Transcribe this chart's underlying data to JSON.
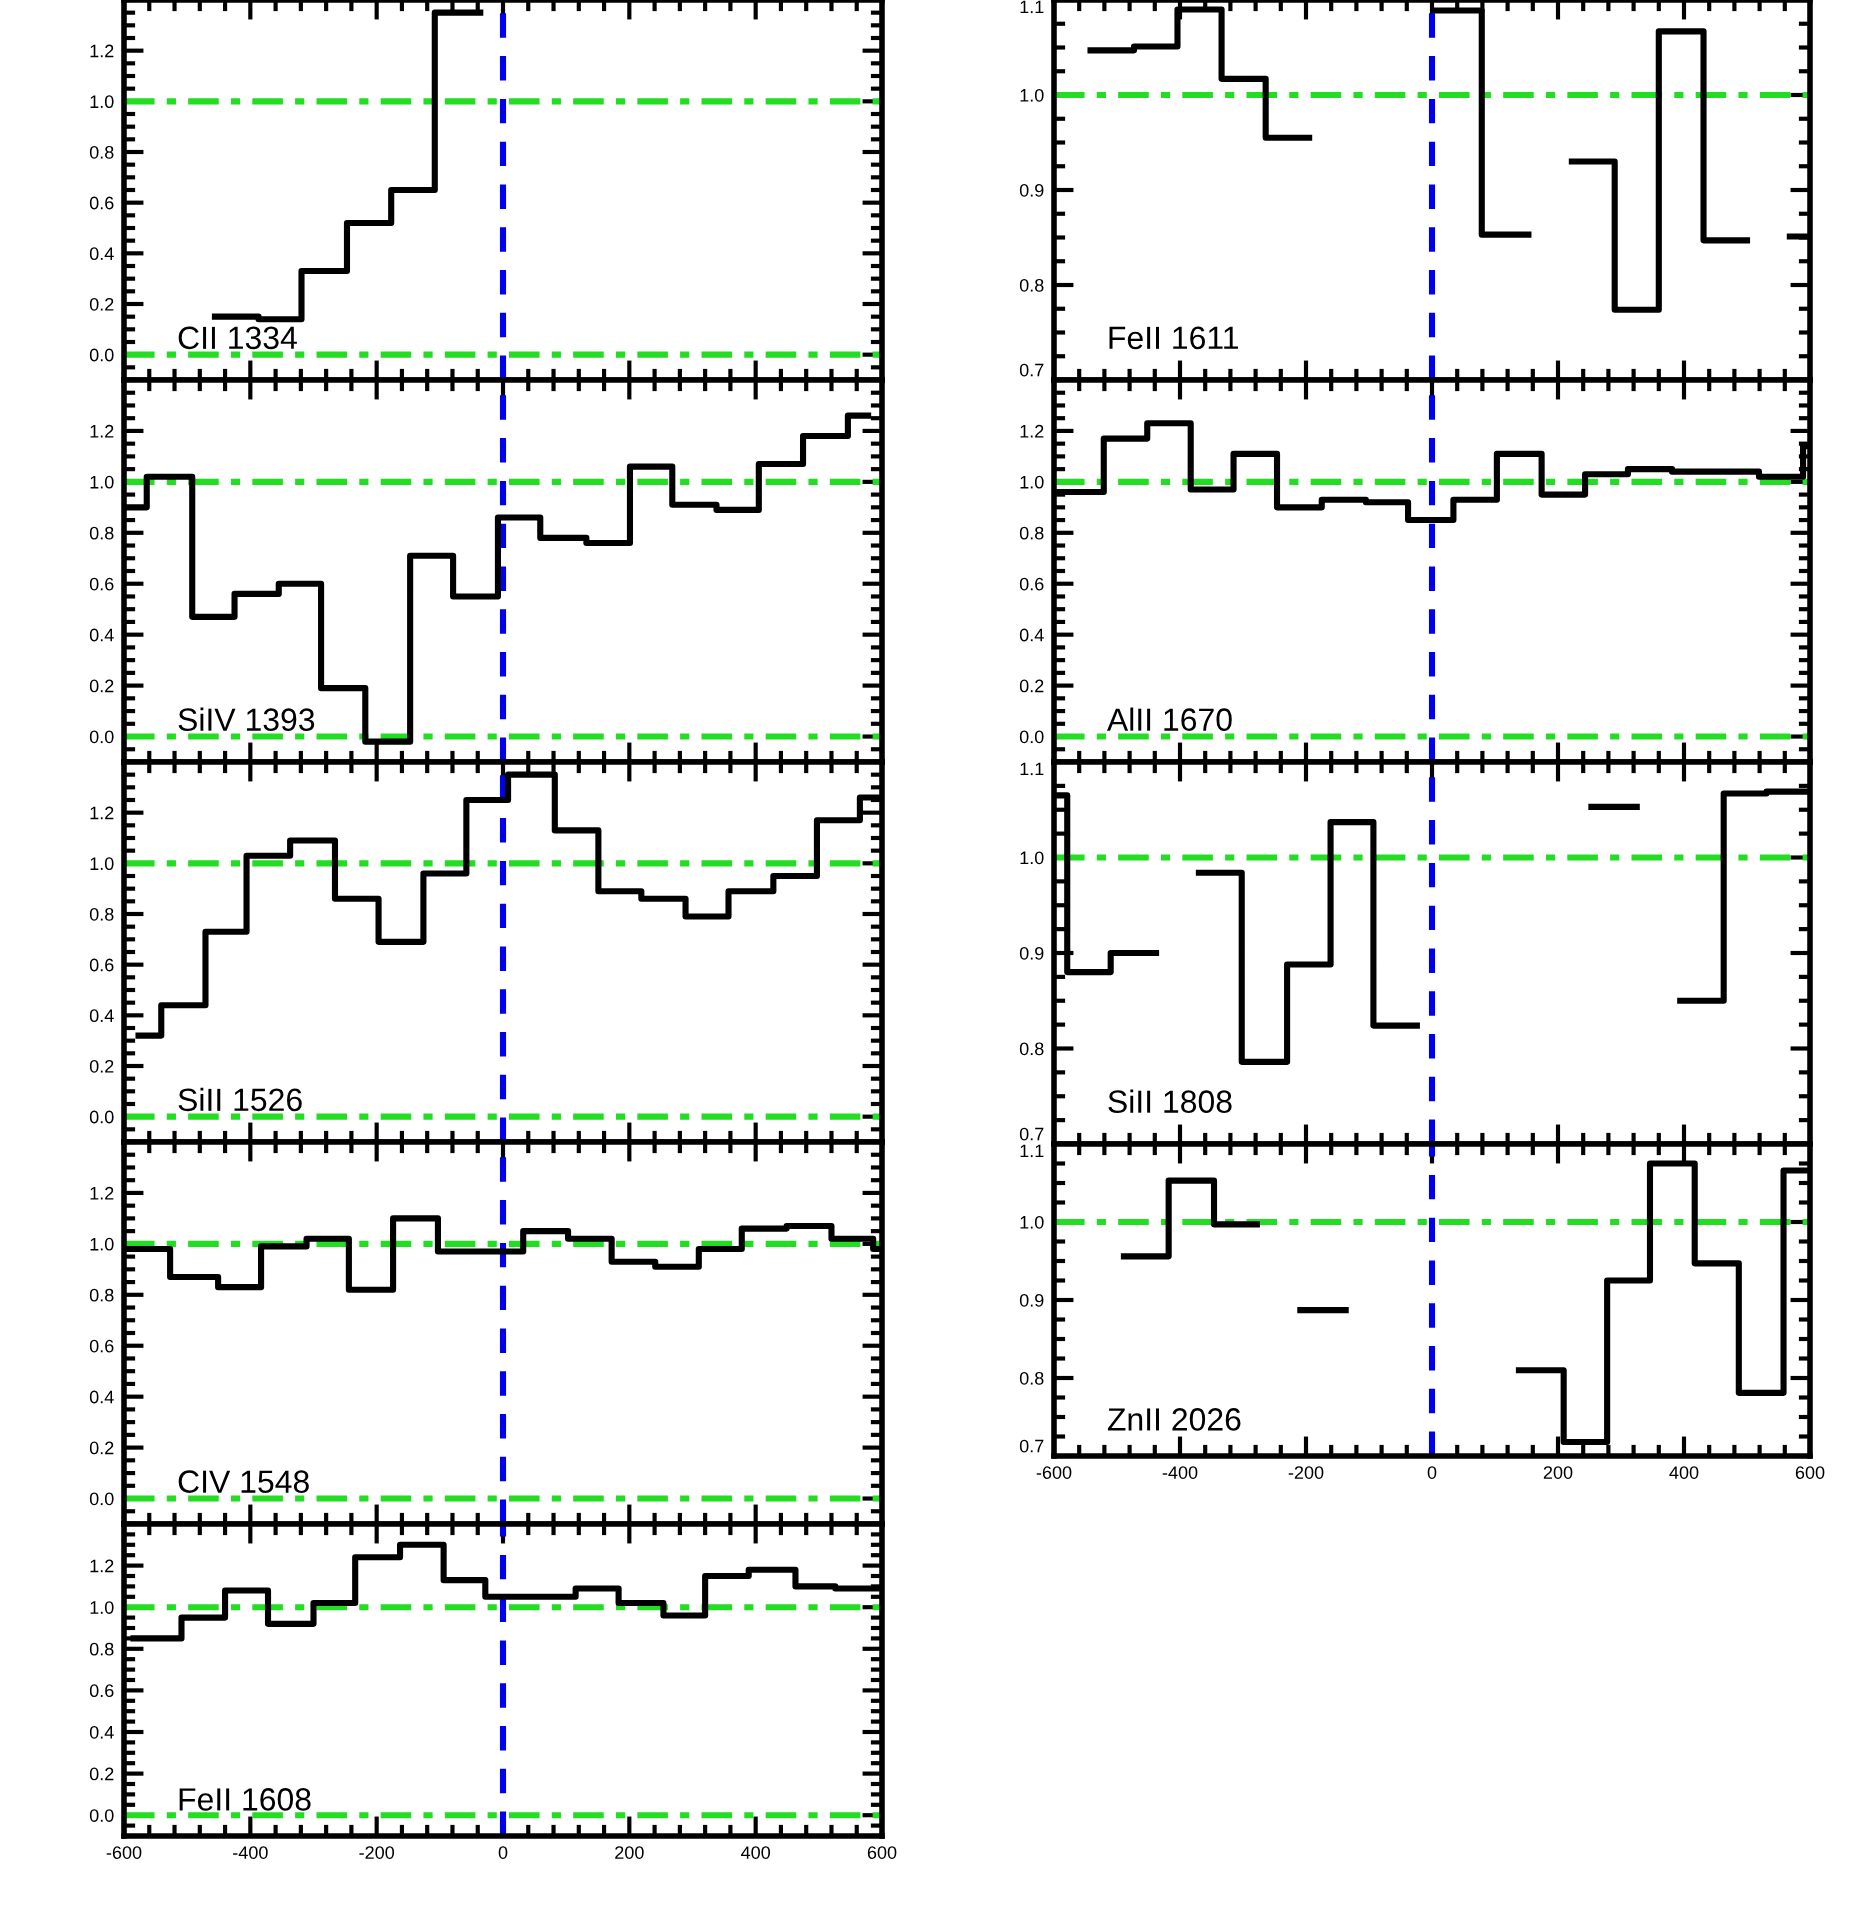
{
  "chart_data": [
    {
      "type": "step",
      "annotations": [
        "CII 1334"
      ],
      "xlim": [
        -600,
        600
      ],
      "xticks": [
        -600,
        -400,
        -200,
        0,
        200,
        400,
        600
      ],
      "ylim": [
        -0.1,
        1.4
      ],
      "yticks": [
        {
          "value": 0,
          "label": "0.0"
        },
        {
          "value": 0.2,
          "label": "0.2"
        },
        {
          "value": 0.4,
          "label": "0.4"
        },
        {
          "value": 0.6,
          "label": "0.6"
        },
        {
          "value": 0.8,
          "label": "0.8"
        },
        {
          "value": 1.0,
          "label": "1.0"
        },
        {
          "value": 1.2,
          "label": "1.2"
        }
      ],
      "tick_labels": "y",
      "ref_lines": [
        {
          "axis": "y",
          "value": 0,
          "color": "#22dd22",
          "line_style": "dashdot"
        },
        {
          "axis": "y",
          "value": 1,
          "color": "#22dd22",
          "line_style": "dashdot"
        },
        {
          "axis": "x",
          "value": 0,
          "color": "#0000ee",
          "line_style": "dashed"
        }
      ],
      "series": [
        {
          "color": "#000000",
          "x": [
            -456,
            -387,
            -319,
            -247,
            -177,
            -108,
            -36
          ],
          "values": [
            0.15,
            0.14,
            0.33,
            0.52,
            0.65,
            1.35,
            1.35
          ]
        }
      ]
    },
    {
      "type": "step",
      "annotations": [
        "SiIV 1393"
      ],
      "xlim": [
        -600,
        600
      ],
      "xticks": [
        -600,
        -400,
        -200,
        0,
        200,
        400,
        600
      ],
      "ylim": [
        -0.1,
        1.4
      ],
      "yticks": [
        {
          "value": 0,
          "label": "0.0"
        },
        {
          "value": 0.2,
          "label": "0.2"
        },
        {
          "value": 0.4,
          "label": "0.4"
        },
        {
          "value": 0.6,
          "label": "0.6"
        },
        {
          "value": 0.8,
          "label": "0.8"
        },
        {
          "value": 1.0,
          "label": "1.0"
        },
        {
          "value": 1.2,
          "label": "1.2"
        }
      ],
      "tick_labels": "y",
      "ref_lines": [
        {
          "axis": "y",
          "value": 0,
          "color": "#22dd22",
          "line_style": "dashdot"
        },
        {
          "axis": "y",
          "value": 1,
          "color": "#22dd22",
          "line_style": "dashdot"
        },
        {
          "axis": "x",
          "value": 0,
          "color": "#0000ee",
          "line_style": "dashed"
        }
      ],
      "series": [
        {
          "color": "#000000",
          "x": [
            -600,
            -564,
            -492,
            -425,
            -355,
            -288,
            -218,
            -147,
            -79,
            -8,
            59,
            132,
            201,
            268,
            338,
            405,
            475,
            546,
            578
          ],
          "values": [
            0.9,
            1.02,
            0.47,
            0.56,
            0.6,
            0.19,
            -0.02,
            0.71,
            0.55,
            0.86,
            0.78,
            0.76,
            1.06,
            0.91,
            0.89,
            1.07,
            1.18,
            1.26,
            1.26
          ]
        }
      ]
    },
    {
      "type": "step",
      "annotations": [
        "SiII 1526"
      ],
      "xlim": [
        -600,
        600
      ],
      "xticks": [
        -600,
        -400,
        -200,
        0,
        200,
        400,
        600
      ],
      "ylim": [
        -0.1,
        1.4
      ],
      "yticks": [
        {
          "value": 0,
          "label": "0.0"
        },
        {
          "value": 0.2,
          "label": "0.2"
        },
        {
          "value": 0.4,
          "label": "0.4"
        },
        {
          "value": 0.6,
          "label": "0.6"
        },
        {
          "value": 0.8,
          "label": "0.8"
        },
        {
          "value": 1.0,
          "label": "1.0"
        },
        {
          "value": 1.2,
          "label": "1.2"
        }
      ],
      "tick_labels": "y",
      "ref_lines": [
        {
          "axis": "y",
          "value": 0,
          "color": "#22dd22",
          "line_style": "dashdot"
        },
        {
          "axis": "y",
          "value": 1,
          "color": "#22dd22",
          "line_style": "dashdot"
        },
        {
          "axis": "x",
          "value": 0,
          "color": "#0000ee",
          "line_style": "dashed"
        }
      ],
      "series": [
        {
          "color": "#000000",
          "x": [
            -577,
            -541,
            -471,
            -406,
            -337,
            -266,
            -197,
            -126,
            -58,
            8,
            82,
            151,
            219,
            289,
            357,
            428,
            497,
            565,
            595
          ],
          "values": [
            0.32,
            0.44,
            0.73,
            1.03,
            1.09,
            0.86,
            0.69,
            0.96,
            1.25,
            1.35,
            1.13,
            0.89,
            0.86,
            0.79,
            0.89,
            0.95,
            1.17,
            1.26,
            1.26
          ]
        }
      ]
    },
    {
      "type": "step",
      "annotations": [
        "CIV 1548"
      ],
      "xlim": [
        -600,
        600
      ],
      "xticks": [
        -600,
        -400,
        -200,
        0,
        200,
        400,
        600
      ],
      "ylim": [
        -0.1,
        1.4
      ],
      "yticks": [
        {
          "value": 0,
          "label": "0.0"
        },
        {
          "value": 0.2,
          "label": "0.2"
        },
        {
          "value": 0.4,
          "label": "0.4"
        },
        {
          "value": 0.6,
          "label": "0.6"
        },
        {
          "value": 0.8,
          "label": "0.8"
        },
        {
          "value": 1.0,
          "label": "1.0"
        },
        {
          "value": 1.2,
          "label": "1.2"
        }
      ],
      "tick_labels": "y",
      "ref_lines": [
        {
          "axis": "y",
          "value": 0,
          "color": "#22dd22",
          "line_style": "dashdot"
        },
        {
          "axis": "y",
          "value": 1,
          "color": "#22dd22",
          "line_style": "dashdot"
        },
        {
          "axis": "x",
          "value": 0,
          "color": "#0000ee",
          "line_style": "dashed"
        }
      ],
      "series": [
        {
          "color": "#000000",
          "x": [
            -596,
            -527,
            -451,
            -383,
            -311,
            -244,
            -174,
            -103,
            -33,
            32,
            103,
            172,
            241,
            310,
            378,
            449,
            520,
            586,
            595
          ],
          "values": [
            0.98,
            0.87,
            0.83,
            0.99,
            1.02,
            0.82,
            1.1,
            0.97,
            0.97,
            1.05,
            1.02,
            0.93,
            0.91,
            0.98,
            1.06,
            1.07,
            1.02,
            0.98,
            0.98
          ]
        }
      ]
    },
    {
      "type": "step",
      "annotations": [
        "FeII 1608"
      ],
      "xlim": [
        -600,
        600
      ],
      "xticks": [
        -600,
        -400,
        -200,
        0,
        200,
        400,
        600
      ],
      "ylim": [
        -0.1,
        1.4
      ],
      "yticks": [
        {
          "value": 0,
          "label": "0.0"
        },
        {
          "value": 0.2,
          "label": "0.2"
        },
        {
          "value": 0.4,
          "label": "0.4"
        },
        {
          "value": 0.6,
          "label": "0.6"
        },
        {
          "value": 0.8,
          "label": "0.8"
        },
        {
          "value": 1.0,
          "label": "1.0"
        },
        {
          "value": 1.2,
          "label": "1.2"
        }
      ],
      "ref_lines": [
        {
          "axis": "y",
          "value": 0,
          "color": "#22dd22",
          "line_style": "dashdot"
        },
        {
          "axis": "y",
          "value": 1,
          "color": "#22dd22",
          "line_style": "dashdot"
        },
        {
          "axis": "x",
          "value": 0,
          "color": "#0000ee",
          "line_style": "dashed"
        }
      ],
      "series": [
        {
          "color": "#000000",
          "x": [
            -585,
            -509,
            -440,
            -372,
            -300,
            -234,
            -163,
            -94,
            -28,
            46,
            115,
            183,
            254,
            320,
            389,
            463,
            526,
            595
          ],
          "values": [
            0.85,
            0.95,
            1.08,
            0.92,
            1.02,
            1.24,
            1.3,
            1.13,
            1.05,
            1.05,
            1.09,
            1.02,
            0.96,
            1.15,
            1.18,
            1.1,
            1.09,
            1.09
          ]
        }
      ]
    },
    {
      "type": "step",
      "annotations": [
        "FeII 1611"
      ],
      "xlim": [
        -600,
        600
      ],
      "xticks": [
        -600,
        -400,
        -200,
        0,
        200,
        400,
        600
      ],
      "ylim": [
        0.7,
        1.1
      ],
      "yticks": [
        {
          "value": 0.7,
          "label": "0.7"
        },
        {
          "value": 0.8,
          "label": "0.8"
        },
        {
          "value": 0.9,
          "label": "0.9"
        },
        {
          "value": 1.0,
          "label": "1.0"
        },
        {
          "value": 1.1,
          "label": "1.1"
        }
      ],
      "tick_labels": "y",
      "ref_lines": [
        {
          "axis": "y",
          "value": 1,
          "color": "#22dd22",
          "line_style": "dashdot"
        },
        {
          "axis": "x",
          "value": 0,
          "color": "#0000ee",
          "line_style": "dashed"
        }
      ],
      "series": [
        {
          "color": "#000000",
          "x": [
            -542,
            -473,
            -404,
            -334,
            -264,
            -195,
            8,
            79,
            153,
            222,
            290,
            360,
            431,
            500,
            568,
            597
          ],
          "values": [
            1.047,
            1.051,
            1.09,
            1.017,
            0.955,
            null,
            1.089,
            0.853,
            null,
            0.93,
            0.774,
            1.067,
            0.847,
            null,
            0.851,
            0.851
          ]
        }
      ]
    },
    {
      "type": "step",
      "annotations": [
        "AlII 1670"
      ],
      "xlim": [
        -600,
        600
      ],
      "xticks": [
        -600,
        -400,
        -200,
        0,
        200,
        400,
        600
      ],
      "ylim": [
        -0.1,
        1.4
      ],
      "yticks": [
        {
          "value": 0,
          "label": "0.0"
        },
        {
          "value": 0.2,
          "label": "0.2"
        },
        {
          "value": 0.4,
          "label": "0.4"
        },
        {
          "value": 0.6,
          "label": "0.6"
        },
        {
          "value": 0.8,
          "label": "0.8"
        },
        {
          "value": 1.0,
          "label": "1.0"
        },
        {
          "value": 1.2,
          "label": "1.2"
        }
      ],
      "tick_labels": "y",
      "ref_lines": [
        {
          "axis": "y",
          "value": 0,
          "color": "#22dd22",
          "line_style": "dashdot"
        },
        {
          "axis": "y",
          "value": 1,
          "color": "#22dd22",
          "line_style": "dashdot"
        },
        {
          "axis": "x",
          "value": 0,
          "color": "#0000ee",
          "line_style": "dashed"
        }
      ],
      "series": [
        {
          "color": "#000000",
          "x": [
            -592,
            -521,
            -452,
            -383,
            -315,
            -246,
            -175,
            -105,
            -38,
            34,
            103,
            174,
            243,
            311,
            381,
            450,
            519,
            589,
            600
          ],
          "values": [
            0.96,
            1.17,
            1.23,
            0.97,
            1.11,
            0.9,
            0.93,
            0.92,
            0.85,
            0.93,
            1.11,
            0.95,
            1.03,
            1.05,
            1.04,
            1.04,
            1.02,
            1.14,
            1.14
          ]
        }
      ]
    },
    {
      "type": "step",
      "annotations": [
        "SiII 1808"
      ],
      "xlim": [
        -600,
        600
      ],
      "xticks": [
        -600,
        -400,
        -200,
        0,
        200,
        400,
        600
      ],
      "ylim": [
        0.7,
        1.1
      ],
      "yticks": [
        {
          "value": 0.7,
          "label": "0.7"
        },
        {
          "value": 0.8,
          "label": "0.8"
        },
        {
          "value": 0.9,
          "label": "0.9"
        },
        {
          "value": 1.0,
          "label": "1.0"
        },
        {
          "value": 1.1,
          "label": "1.1"
        }
      ],
      "tick_labels": "y",
      "ref_lines": [
        {
          "axis": "y",
          "value": 1,
          "color": "#22dd22",
          "line_style": "dashdot"
        },
        {
          "axis": "x",
          "value": 0,
          "color": "#0000ee",
          "line_style": "dashed"
        }
      ],
      "series": [
        {
          "color": "#000000",
          "x": [
            -595,
            -579,
            -510,
            -438,
            -370,
            -302,
            -230,
            -161,
            -93,
            -24,
            45,
            185,
            253,
            325,
            394,
            463,
            531,
            597
          ],
          "values": [
            1.065,
            0.88,
            0.9,
            null,
            0.984,
            0.786,
            0.888,
            1.037,
            0.824,
            null,
            null,
            null,
            1.053,
            null,
            0.85,
            1.067,
            1.069,
            1.069
          ]
        }
      ]
    },
    {
      "type": "step",
      "annotations": [
        "ZnII 2026"
      ],
      "xlim": [
        -600,
        600
      ],
      "xticks": [
        -600,
        -400,
        -200,
        0,
        200,
        400,
        600
      ],
      "ylim": [
        0.7,
        1.1
      ],
      "yticks": [
        {
          "value": 0.7,
          "label": "0.7"
        },
        {
          "value": 0.8,
          "label": "0.8"
        },
        {
          "value": 0.9,
          "label": "0.9"
        },
        {
          "value": 1.0,
          "label": "1.0"
        },
        {
          "value": 1.1,
          "label": "1.1"
        }
      ],
      "ref_lines": [
        {
          "axis": "y",
          "value": 1,
          "color": "#22dd22",
          "line_style": "dashdot"
        },
        {
          "axis": "x",
          "value": 0,
          "color": "#0000ee",
          "line_style": "dashed"
        }
      ],
      "series": [
        {
          "color": "#000000",
          "x": [
            -489,
            -418,
            -346,
            -278,
            -209,
            -137,
            138,
            209,
            278,
            346,
            417,
            487,
            558,
            595
          ],
          "values": [
            0.956,
            1.053,
            0.997,
            null,
            0.887,
            null,
            0.81,
            0.718,
            0.925,
            1.075,
            0.947,
            0.781,
            1.066,
            1.066
          ]
        }
      ]
    }
  ]
}
